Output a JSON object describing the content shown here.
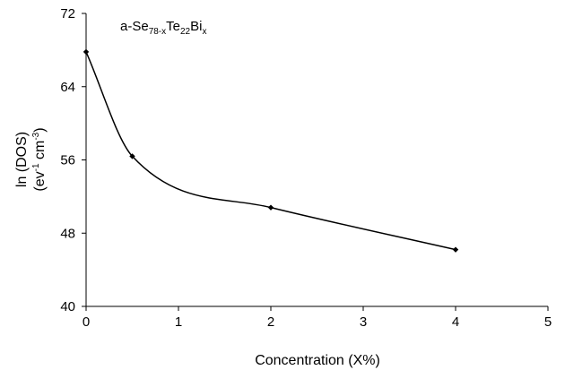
{
  "chart_data": {
    "type": "line",
    "title": "",
    "annotation": {
      "prefix": "a-Se",
      "sub1": "78-x",
      "mid": "Te",
      "sub2": "22",
      "end": "Bi",
      "sub3": "x"
    },
    "xlabel": "Concentration (X%)",
    "ylabel": {
      "line1": "ln (DOS)",
      "line2_open": "(ev",
      "line2_sup1": "-1",
      "line2_mid": " cm",
      "line2_sup2": "-3",
      "line2_close": ")"
    },
    "xlim": [
      0,
      5
    ],
    "ylim": [
      40,
      72
    ],
    "x_ticks": [
      0,
      1,
      2,
      3,
      4,
      5
    ],
    "y_ticks": [
      40,
      48,
      56,
      64,
      72
    ],
    "x_tick_labels": [
      "0",
      "1",
      "2",
      "3",
      "4",
      "5"
    ],
    "y_tick_labels": [
      "40",
      "48",
      "56",
      "64",
      "72"
    ],
    "grid": false,
    "smooth": true,
    "series": [
      {
        "color": "#000000",
        "marker": "diamond",
        "x": [
          0,
          0.5,
          2,
          4
        ],
        "y": [
          67.8,
          56.4,
          50.8,
          46.2
        ]
      }
    ]
  }
}
